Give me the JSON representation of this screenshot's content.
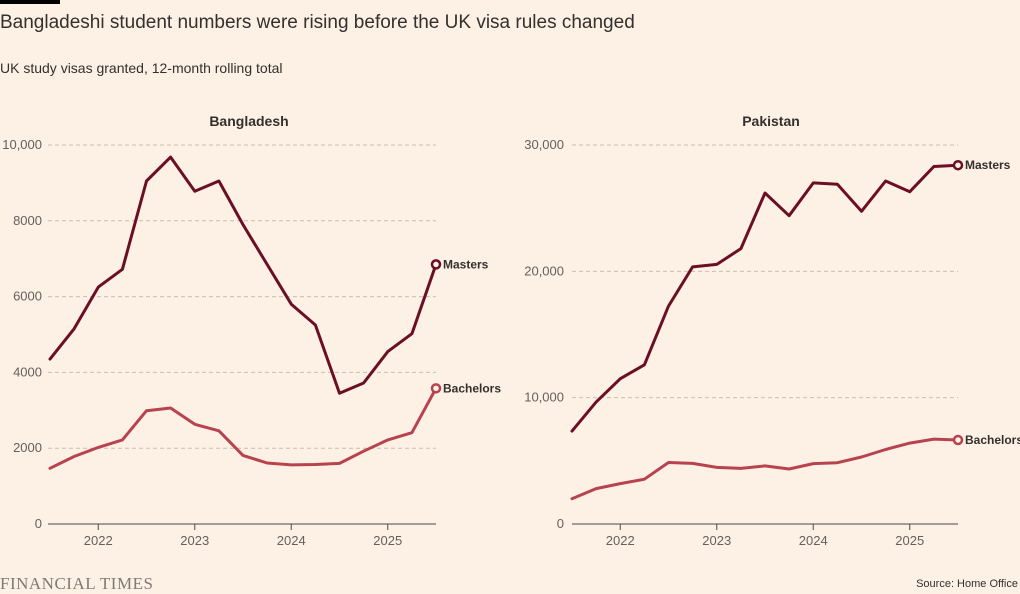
{
  "title": "Bangladeshi student numbers were rising before the UK visa rules changed",
  "subtitle": "UK study visas granted, 12-month rolling total",
  "source": "Source: Home Office",
  "logo_text": "FINANCIAL TIMES",
  "colors": {
    "masters": "#6b0f24",
    "bachelors": "#b8434e",
    "grid": "#c8bdb2",
    "background": "#fdf1e5"
  },
  "chart_data": [
    {
      "type": "line",
      "title": "Bangladesh",
      "x": [
        2021.5,
        2021.75,
        2022.0,
        2022.25,
        2022.5,
        2022.75,
        2023.0,
        2023.25,
        2023.5,
        2023.75,
        2024.0,
        2024.25,
        2024.5,
        2024.75,
        2025.0,
        2025.25,
        2025.5
      ],
      "xlim": [
        2021.5,
        2025.5
      ],
      "xticks": [
        2022,
        2023,
        2024,
        2025
      ],
      "ylim": [
        0,
        10000
      ],
      "yticks": [
        0,
        2000,
        4000,
        6000,
        8000,
        10000
      ],
      "ytick_labels": [
        "0",
        "2000",
        "4000",
        "6000",
        "8000",
        "10,000"
      ],
      "grid": true,
      "series": [
        {
          "name": "Masters",
          "values": [
            4350,
            5150,
            6250,
            6720,
            9050,
            9680,
            8780,
            9050,
            7900,
            6850,
            5800,
            5250,
            3450,
            3720,
            4550,
            5020,
            6850
          ]
        },
        {
          "name": "Bachelors",
          "values": [
            1470,
            1780,
            2020,
            2220,
            2990,
            3060,
            2630,
            2460,
            1810,
            1610,
            1560,
            1570,
            1600,
            1920,
            2220,
            2410,
            3580
          ]
        }
      ]
    },
    {
      "type": "line",
      "title": "Pakistan",
      "x": [
        2021.5,
        2021.75,
        2022.0,
        2022.25,
        2022.5,
        2022.75,
        2023.0,
        2023.25,
        2023.5,
        2023.75,
        2024.0,
        2024.25,
        2024.5,
        2024.75,
        2025.0,
        2025.25,
        2025.5
      ],
      "xlim": [
        2021.5,
        2025.5
      ],
      "xticks": [
        2022,
        2023,
        2024,
        2025
      ],
      "ylim": [
        0,
        30000
      ],
      "yticks": [
        0,
        10000,
        20000,
        30000
      ],
      "ytick_labels": [
        "0",
        "10,000",
        "20,000",
        "30,000"
      ],
      "grid": true,
      "series": [
        {
          "name": "Masters",
          "values": [
            7350,
            9650,
            11500,
            12600,
            17250,
            20350,
            20550,
            21800,
            26200,
            24400,
            27000,
            26900,
            24750,
            27150,
            26300,
            28300,
            28400
          ]
        },
        {
          "name": "Bachelors",
          "values": [
            2000,
            2800,
            3200,
            3550,
            4870,
            4800,
            4480,
            4400,
            4600,
            4350,
            4780,
            4850,
            5300,
            5900,
            6400,
            6720,
            6650
          ]
        }
      ]
    }
  ]
}
